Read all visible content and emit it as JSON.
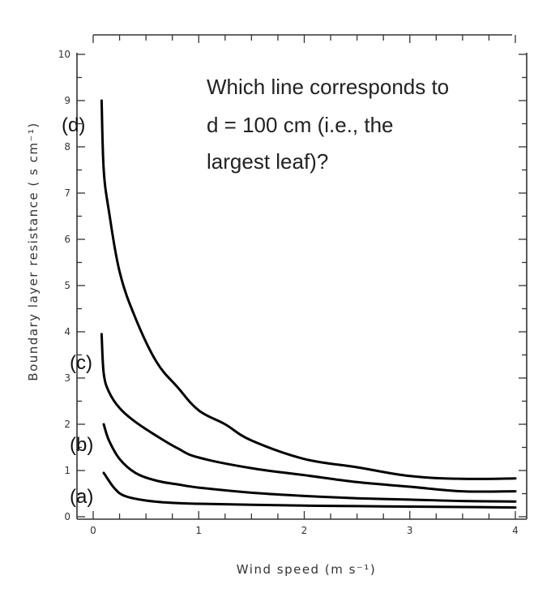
{
  "chart_data": {
    "type": "line",
    "title": "",
    "xlabel": "Wind speed  (m s⁻¹)",
    "ylabel": "Boundary layer resistance  ( s cm⁻¹)",
    "xlim": [
      0,
      4
    ],
    "ylim": [
      0,
      10
    ],
    "x_ticks": [
      "0",
      "1",
      "2",
      "3",
      "4"
    ],
    "y_ticks": [
      "0",
      "1",
      "2",
      "3",
      "4",
      "5",
      "6",
      "7",
      "8",
      "9",
      "10"
    ],
    "grid": false,
    "series": [
      {
        "name": "(a)",
        "x": [
          0.1,
          0.2,
          0.3,
          0.5,
          0.75,
          1.0,
          1.5,
          2.0,
          2.5,
          3.0,
          3.5,
          4.0
        ],
        "y": [
          0.95,
          0.62,
          0.45,
          0.35,
          0.3,
          0.28,
          0.26,
          0.24,
          0.23,
          0.22,
          0.21,
          0.2
        ]
      },
      {
        "name": "(b)",
        "x": [
          0.1,
          0.15,
          0.25,
          0.4,
          0.6,
          0.8,
          1.0,
          1.5,
          2.0,
          2.5,
          3.0,
          3.5,
          4.0
        ],
        "y": [
          2.0,
          1.65,
          1.25,
          0.95,
          0.78,
          0.7,
          0.63,
          0.52,
          0.45,
          0.4,
          0.37,
          0.34,
          0.33
        ]
      },
      {
        "name": "(c)",
        "x": [
          0.08,
          0.1,
          0.15,
          0.25,
          0.4,
          0.6,
          0.8,
          1.0,
          1.5,
          2.0,
          2.5,
          3.0,
          3.5,
          4.0
        ],
        "y": [
          3.95,
          3.1,
          2.7,
          2.35,
          2.05,
          1.75,
          1.48,
          1.28,
          1.05,
          0.9,
          0.75,
          0.65,
          0.55,
          0.55
        ]
      },
      {
        "name": "(d)",
        "x": [
          0.08,
          0.1,
          0.15,
          0.25,
          0.4,
          0.6,
          0.8,
          1.0,
          1.25,
          1.5,
          2.0,
          2.5,
          3.0,
          3.5,
          4.0
        ],
        "y": [
          9.0,
          7.5,
          6.6,
          5.3,
          4.3,
          3.35,
          2.8,
          2.3,
          2.0,
          1.65,
          1.25,
          1.07,
          0.88,
          0.82,
          0.83
        ]
      }
    ]
  },
  "annotation": {
    "question_lines": [
      "Which line corresponds to",
      "d = 100 cm (i.e., the",
      "largest leaf)?"
    ]
  },
  "colors": {
    "curve": "#000000",
    "axis": "#333333"
  }
}
